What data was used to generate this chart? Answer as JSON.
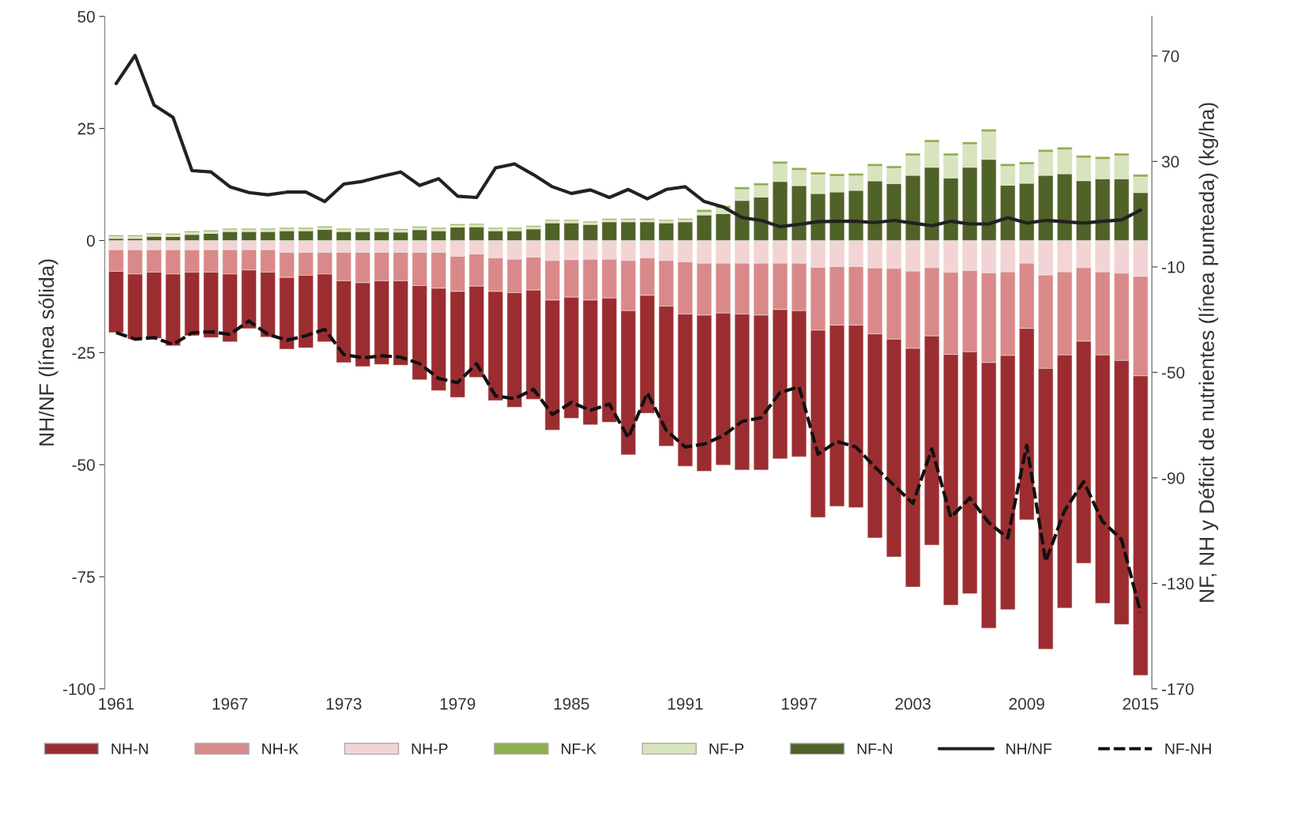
{
  "chart_data": {
    "type": "bar",
    "stacked": true,
    "ylabel": "NH/NF (línea sólida)",
    "y2label": "NF, NH y Déficit de nutrientes (línea punteada) (kg/ha)",
    "categories": [
      "1961",
      null,
      null,
      null,
      null,
      null,
      "1967",
      null,
      null,
      null,
      null,
      null,
      "1973",
      null,
      null,
      null,
      null,
      null,
      "1979",
      null,
      null,
      null,
      null,
      null,
      "1985",
      null,
      null,
      null,
      null,
      null,
      "1991",
      null,
      null,
      null,
      null,
      null,
      "1997",
      null,
      null,
      null,
      null,
      null,
      "2003",
      null,
      null,
      null,
      null,
      null,
      "2009",
      null,
      null,
      null,
      null,
      null,
      "2015"
    ],
    "ylim": [
      -100,
      50
    ],
    "yticks": [
      50,
      25,
      0,
      -25,
      -50,
      -75,
      -100
    ],
    "y2lim": [
      -170,
      85
    ],
    "y2ticks": [
      70,
      30,
      -10,
      -50,
      -90,
      -130,
      -170
    ],
    "legend": "bottom",
    "grid": false,
    "series": [
      {
        "name": "NH-P",
        "color": "#f2d4d6",
        "axis": "y2",
        "values": [
          -3.5,
          -3.5,
          -3.5,
          -3.5,
          -3.5,
          -3.5,
          -3.5,
          -3.5,
          -3.5,
          -4.5,
          -4.5,
          -4.5,
          -4.5,
          -4.5,
          -4.5,
          -4.5,
          -4.5,
          -4.5,
          -6,
          -5.1,
          -6.6,
          -7.1,
          -6.3,
          -7.6,
          -7.3,
          -7.1,
          -7.1,
          -7.6,
          -6.6,
          -7.6,
          -8.1,
          -8.6,
          -8.6,
          -8.6,
          -8.6,
          -8.6,
          -8.6,
          -10.2,
          -9.9,
          -9.9,
          -10.4,
          -10.6,
          -11.6,
          -10.3,
          -12.1,
          -11.4,
          -12.3,
          -11.9,
          -8.6,
          -13.1,
          -11.9,
          -10.3,
          -11.9,
          -12.4,
          -13.6
        ]
      },
      {
        "name": "NH-K",
        "color": "#d9898a",
        "axis": "y2",
        "values": [
          -8.2,
          -9.2,
          -8.5,
          -9.2,
          -8.5,
          -8.5,
          -9.2,
          -7.7,
          -8.5,
          -9.5,
          -8.7,
          -8.2,
          -10.8,
          -11.5,
          -10.8,
          -10.8,
          -12.6,
          -13.6,
          -13.3,
          -12.2,
          -12.7,
          -12.7,
          -12.5,
          -15,
          -14.2,
          -15.5,
          -14.7,
          -19,
          -14.2,
          -17.3,
          -19.8,
          -19.7,
          -18.9,
          -19.3,
          -19.7,
          -17.6,
          -18,
          -23.8,
          -22.2,
          -22.2,
          -25,
          -26.8,
          -29.3,
          -25.9,
          -31.1,
          -30.8,
          -34,
          -31.7,
          -24.7,
          -35.4,
          -31.5,
          -27.9,
          -31.5,
          -33.1,
          -37.7
        ]
      },
      {
        "name": "NH-N",
        "color": "#9b2d30",
        "axis": "y2",
        "values": [
          -23.2,
          -24.7,
          -25.1,
          -27.2,
          -24.1,
          -24.8,
          -25.7,
          -22.2,
          -24.6,
          -27.2,
          -27.5,
          -25.7,
          -31,
          -31.8,
          -31.7,
          -32,
          -35.7,
          -38.8,
          -40.2,
          -34.6,
          -41.4,
          -43.4,
          -41.4,
          -49.3,
          -45.9,
          -47.3,
          -47.1,
          -54.7,
          -44.7,
          -53.1,
          -57.7,
          -59.2,
          -57.7,
          -59.1,
          -58.7,
          -56.6,
          -55.4,
          -71,
          -68.7,
          -69.2,
          -77.4,
          -82.6,
          -90.5,
          -79.3,
          -95.1,
          -91.7,
          -100.7,
          -96.4,
          -72.6,
          -106.5,
          -96,
          -84.2,
          -94.2,
          -100.1,
          -113.6
        ]
      },
      {
        "name": "NF-N",
        "color": "#4f6228",
        "axis": "y2",
        "values": [
          0.8,
          0.8,
          1.6,
          1.5,
          2.3,
          2.7,
          3.4,
          3.4,
          3.4,
          3.7,
          3.7,
          4.2,
          3.4,
          3.4,
          3.4,
          3.2,
          4.1,
          3.7,
          5.1,
          5.2,
          3.7,
          3.7,
          4.4,
          6.7,
          6.7,
          6.1,
          7.1,
          7.1,
          7.1,
          6.7,
          7.1,
          9.7,
          10.2,
          15.2,
          16.5,
          22.4,
          20.8,
          17.8,
          18.4,
          19,
          22.6,
          21.6,
          24.7,
          27.8,
          23.7,
          27.8,
          30.8,
          21,
          21.7,
          24.7,
          25.3,
          22.7,
          23.4,
          23.4,
          18.2
        ]
      },
      {
        "name": "NF-P",
        "color": "#d7e4bd",
        "axis": "y2",
        "values": [
          0.7,
          0.7,
          0.7,
          0.7,
          0.7,
          0.7,
          0.7,
          0.7,
          0.7,
          0.7,
          0.7,
          0.7,
          0.7,
          0.7,
          0.7,
          0.7,
          0.7,
          0.7,
          0.7,
          0.7,
          0.7,
          0.7,
          0.7,
          0.7,
          0.7,
          0.7,
          0.7,
          0.7,
          0.7,
          0.7,
          0.7,
          1,
          2,
          4.1,
          4.3,
          6.6,
          5.8,
          7.1,
          5.9,
          5.5,
          5.5,
          5.7,
          7.4,
          9.4,
          8.4,
          8.6,
          10.4,
          7.1,
          7.1,
          8.8,
          9.1,
          8.6,
          7.4,
          8.7,
          5.9
        ]
      },
      {
        "name": "NF-K",
        "color": "#8db04a",
        "axis": "y2",
        "values": [
          0.5,
          0.5,
          0.5,
          0.5,
          0.5,
          0.5,
          0.5,
          0.5,
          0.5,
          0.5,
          0.5,
          0.5,
          0.5,
          0.5,
          0.5,
          0.5,
          0.5,
          0.5,
          0.5,
          0.5,
          0.5,
          0.5,
          0.5,
          0.5,
          0.5,
          0.5,
          0.5,
          0.5,
          0.5,
          0.5,
          0.5,
          1,
          1,
          1,
          1,
          1,
          1,
          1,
          1,
          1,
          1,
          1,
          1,
          1,
          1,
          1,
          1,
          1,
          1,
          1,
          1,
          1,
          1,
          1,
          1
        ]
      },
      {
        "name": "NH/NF",
        "type": "line",
        "color": "#222222",
        "line_style": "solid",
        "values": [
          35,
          41.3,
          30.2,
          27.5,
          15.6,
          15.3,
          12,
          10.7,
          10.2,
          10.8,
          10.8,
          8.7,
          12.6,
          13.2,
          14.3,
          15.3,
          12.3,
          13.8,
          9.9,
          9.6,
          16.2,
          17.1,
          14.7,
          12,
          10.5,
          11.3,
          9.6,
          11.4,
          9.3,
          11.4,
          12,
          8.7,
          7.5,
          5.1,
          4.5,
          3.1,
          3.6,
          4.2,
          4.3,
          4.3,
          4,
          4.5,
          3.9,
          3.3,
          4.3,
          3.7,
          3.7,
          5.1,
          3.9,
          4.5,
          4.2,
          3.9,
          4.3,
          4.6,
          6.8
        ]
      },
      {
        "name": "NF-NH",
        "type": "line",
        "color": "#111111",
        "line_style": "dashed",
        "axis": "y2",
        "values": [
          -34.9,
          -37.4,
          -36.8,
          -39.4,
          -35,
          -34.6,
          -35.6,
          -30.5,
          -35.6,
          -37.8,
          -36.1,
          -33.7,
          -43.2,
          -44.5,
          -43.7,
          -44.2,
          -46.7,
          -52.3,
          -53.9,
          -46.7,
          -58.9,
          -60,
          -56.4,
          -66,
          -61.4,
          -64.4,
          -62,
          -74.8,
          -57.8,
          -72,
          -78.3,
          -77.2,
          -74,
          -68.6,
          -67.2,
          -57.6,
          -55.5,
          -81,
          -76.2,
          -78.3,
          -85.9,
          -92.8,
          -99.7,
          -79,
          -105,
          -97.6,
          -107,
          -112.8,
          -77.6,
          -121.7,
          -102.4,
          -91.4,
          -106.6,
          -113.4,
          -141
        ]
      }
    ]
  }
}
